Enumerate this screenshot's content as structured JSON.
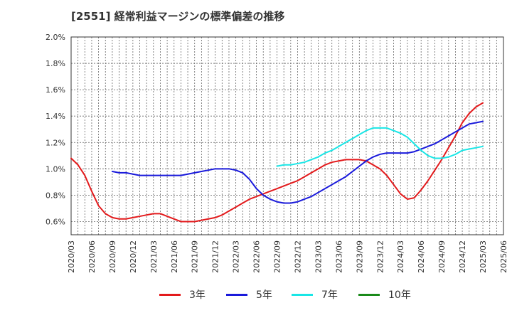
{
  "chart_data": {
    "type": "line",
    "title": "[2551]  経常利益マージンの標準偏差の推移",
    "xlabel": "",
    "ylabel": "",
    "ylim": [
      0.5,
      2.0
    ],
    "y_ticks": [
      "0.6%",
      "0.8%",
      "1.0%",
      "1.2%",
      "1.4%",
      "1.6%",
      "1.8%",
      "2.0%"
    ],
    "x_ticks": [
      "2020/03",
      "2020/06",
      "2020/09",
      "2020/12",
      "2021/03",
      "2021/06",
      "2021/09",
      "2021/12",
      "2022/03",
      "2022/06",
      "2022/09",
      "2022/12",
      "2023/03",
      "2023/06",
      "2023/09",
      "2023/12",
      "2024/03",
      "2024/06",
      "2024/09",
      "2024/12",
      "2025/03",
      "2025/06"
    ],
    "grid": true,
    "legend_position": "bottom",
    "series": [
      {
        "name": "3年",
        "color": "#e31a1c",
        "points": [
          [
            "2020/03",
            1.08
          ],
          [
            "2020/04",
            1.03
          ],
          [
            "2020/05",
            0.95
          ],
          [
            "2020/06",
            0.83
          ],
          [
            "2020/07",
            0.72
          ],
          [
            "2020/08",
            0.66
          ],
          [
            "2020/09",
            0.63
          ],
          [
            "2020/10",
            0.62
          ],
          [
            "2020/11",
            0.62
          ],
          [
            "2020/12",
            0.63
          ],
          [
            "2021/01",
            0.64
          ],
          [
            "2021/02",
            0.65
          ],
          [
            "2021/03",
            0.66
          ],
          [
            "2021/04",
            0.66
          ],
          [
            "2021/05",
            0.64
          ],
          [
            "2021/06",
            0.62
          ],
          [
            "2021/07",
            0.6
          ],
          [
            "2021/08",
            0.6
          ],
          [
            "2021/09",
            0.6
          ],
          [
            "2021/10",
            0.61
          ],
          [
            "2021/11",
            0.62
          ],
          [
            "2021/12",
            0.63
          ],
          [
            "2022/01",
            0.65
          ],
          [
            "2022/02",
            0.68
          ],
          [
            "2022/03",
            0.71
          ],
          [
            "2022/04",
            0.74
          ],
          [
            "2022/05",
            0.77
          ],
          [
            "2022/06",
            0.79
          ],
          [
            "2022/07",
            0.81
          ],
          [
            "2022/08",
            0.83
          ],
          [
            "2022/09",
            0.85
          ],
          [
            "2022/10",
            0.87
          ],
          [
            "2022/11",
            0.89
          ],
          [
            "2022/12",
            0.91
          ],
          [
            "2023/01",
            0.94
          ],
          [
            "2023/02",
            0.97
          ],
          [
            "2023/03",
            1.0
          ],
          [
            "2023/04",
            1.03
          ],
          [
            "2023/05",
            1.05
          ],
          [
            "2023/06",
            1.06
          ],
          [
            "2023/07",
            1.07
          ],
          [
            "2023/08",
            1.07
          ],
          [
            "2023/09",
            1.07
          ],
          [
            "2023/10",
            1.06
          ],
          [
            "2023/11",
            1.03
          ],
          [
            "2023/12",
            1.0
          ],
          [
            "2024/01",
            0.95
          ],
          [
            "2024/02",
            0.88
          ],
          [
            "2024/03",
            0.81
          ],
          [
            "2024/04",
            0.77
          ],
          [
            "2024/05",
            0.78
          ],
          [
            "2024/06",
            0.84
          ],
          [
            "2024/07",
            0.91
          ],
          [
            "2024/08",
            0.99
          ],
          [
            "2024/09",
            1.07
          ],
          [
            "2024/10",
            1.16
          ],
          [
            "2024/11",
            1.25
          ],
          [
            "2024/12",
            1.35
          ],
          [
            "2025/01",
            1.42
          ],
          [
            "2025/02",
            1.47
          ],
          [
            "2025/03",
            1.5
          ]
        ]
      },
      {
        "name": "5年",
        "color": "#1a1adb",
        "points": [
          [
            "2020/09",
            0.98
          ],
          [
            "2020/10",
            0.97
          ],
          [
            "2020/11",
            0.97
          ],
          [
            "2020/12",
            0.96
          ],
          [
            "2021/01",
            0.95
          ],
          [
            "2021/02",
            0.95
          ],
          [
            "2021/03",
            0.95
          ],
          [
            "2021/04",
            0.95
          ],
          [
            "2021/05",
            0.95
          ],
          [
            "2021/06",
            0.95
          ],
          [
            "2021/07",
            0.95
          ],
          [
            "2021/08",
            0.96
          ],
          [
            "2021/09",
            0.97
          ],
          [
            "2021/10",
            0.98
          ],
          [
            "2021/11",
            0.99
          ],
          [
            "2021/12",
            1.0
          ],
          [
            "2022/01",
            1.0
          ],
          [
            "2022/02",
            1.0
          ],
          [
            "2022/03",
            0.99
          ],
          [
            "2022/04",
            0.97
          ],
          [
            "2022/05",
            0.92
          ],
          [
            "2022/06",
            0.85
          ],
          [
            "2022/07",
            0.8
          ],
          [
            "2022/08",
            0.77
          ],
          [
            "2022/09",
            0.75
          ],
          [
            "2022/10",
            0.74
          ],
          [
            "2022/11",
            0.74
          ],
          [
            "2022/12",
            0.75
          ],
          [
            "2023/01",
            0.77
          ],
          [
            "2023/02",
            0.79
          ],
          [
            "2023/03",
            0.82
          ],
          [
            "2023/04",
            0.85
          ],
          [
            "2023/05",
            0.88
          ],
          [
            "2023/06",
            0.91
          ],
          [
            "2023/07",
            0.94
          ],
          [
            "2023/08",
            0.98
          ],
          [
            "2023/09",
            1.02
          ],
          [
            "2023/10",
            1.06
          ],
          [
            "2023/11",
            1.09
          ],
          [
            "2023/12",
            1.11
          ],
          [
            "2024/01",
            1.12
          ],
          [
            "2024/02",
            1.12
          ],
          [
            "2024/03",
            1.12
          ],
          [
            "2024/04",
            1.12
          ],
          [
            "2024/05",
            1.13
          ],
          [
            "2024/06",
            1.15
          ],
          [
            "2024/07",
            1.17
          ],
          [
            "2024/08",
            1.19
          ],
          [
            "2024/09",
            1.22
          ],
          [
            "2024/10",
            1.25
          ],
          [
            "2024/11",
            1.28
          ],
          [
            "2024/12",
            1.31
          ],
          [
            "2025/01",
            1.34
          ],
          [
            "2025/02",
            1.35
          ],
          [
            "2025/03",
            1.36
          ]
        ]
      },
      {
        "name": "7年",
        "color": "#19e6e6",
        "points": [
          [
            "2022/09",
            1.02
          ],
          [
            "2022/10",
            1.03
          ],
          [
            "2022/11",
            1.03
          ],
          [
            "2022/12",
            1.04
          ],
          [
            "2023/01",
            1.05
          ],
          [
            "2023/02",
            1.07
          ],
          [
            "2023/03",
            1.09
          ],
          [
            "2023/04",
            1.12
          ],
          [
            "2023/05",
            1.14
          ],
          [
            "2023/06",
            1.17
          ],
          [
            "2023/07",
            1.2
          ],
          [
            "2023/08",
            1.23
          ],
          [
            "2023/09",
            1.26
          ],
          [
            "2023/10",
            1.29
          ],
          [
            "2023/11",
            1.31
          ],
          [
            "2023/12",
            1.31
          ],
          [
            "2024/01",
            1.31
          ],
          [
            "2024/02",
            1.29
          ],
          [
            "2024/03",
            1.27
          ],
          [
            "2024/04",
            1.24
          ],
          [
            "2024/05",
            1.19
          ],
          [
            "2024/06",
            1.14
          ],
          [
            "2024/07",
            1.1
          ],
          [
            "2024/08",
            1.08
          ],
          [
            "2024/09",
            1.08
          ],
          [
            "2024/10",
            1.09
          ],
          [
            "2024/11",
            1.11
          ],
          [
            "2024/12",
            1.14
          ],
          [
            "2025/01",
            1.15
          ],
          [
            "2025/02",
            1.16
          ],
          [
            "2025/03",
            1.17
          ]
        ]
      },
      {
        "name": "10年",
        "color": "#1a8a1a",
        "points": []
      }
    ]
  }
}
